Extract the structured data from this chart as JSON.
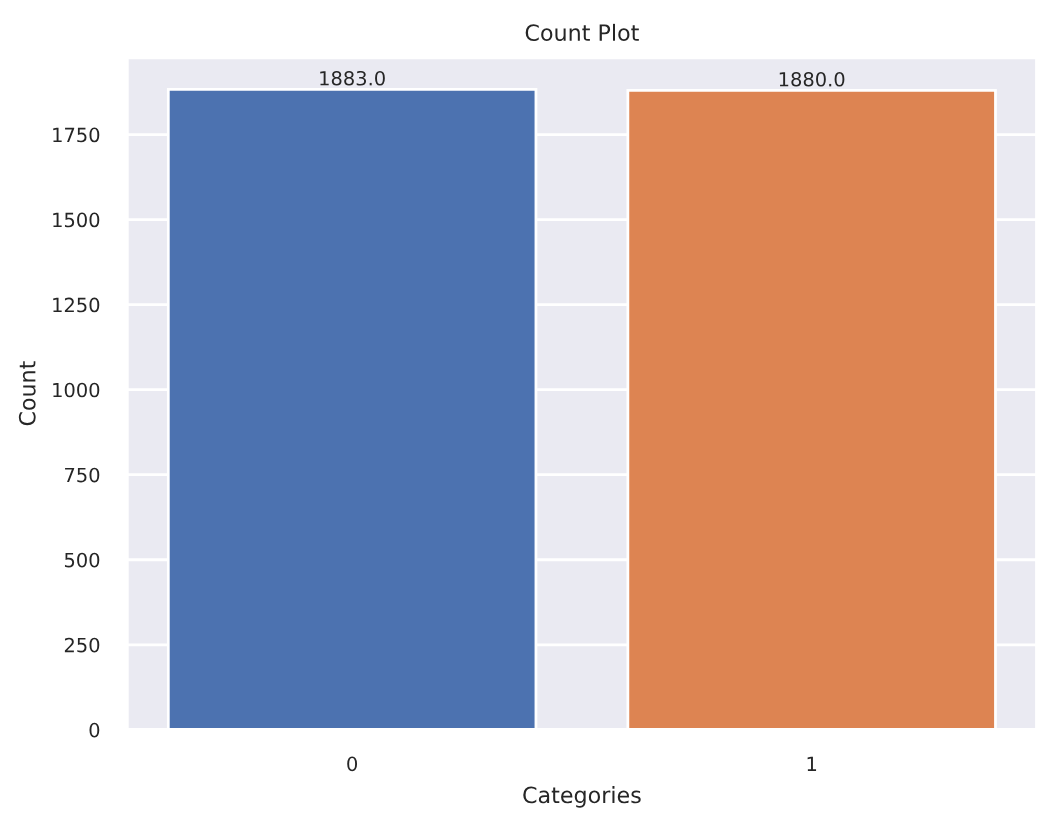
{
  "chart_data": {
    "type": "bar",
    "title": "Count Plot",
    "xlabel": "Categories",
    "ylabel": "Count",
    "categories": [
      "0",
      "1"
    ],
    "values": [
      1883.0,
      1880.0
    ],
    "colors": [
      "#4c72b0",
      "#dd8452"
    ],
    "value_labels": [
      "1883.0",
      "1880.0"
    ],
    "ylim": [
      0,
      1977
    ],
    "yticks": [
      0,
      250,
      500,
      750,
      1000,
      1250,
      1500,
      1750
    ],
    "grid": "y"
  }
}
